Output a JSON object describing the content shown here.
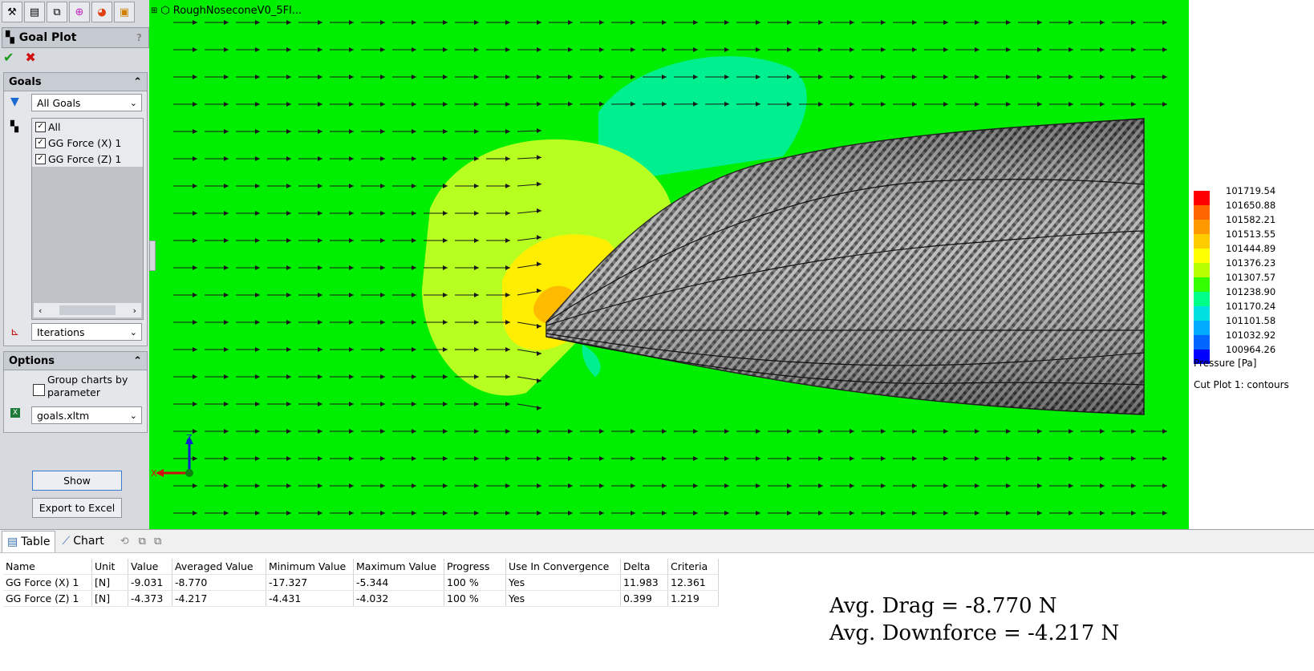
{
  "panel": {
    "title": "Goal Plot",
    "help": "?",
    "goals_header": "Goals",
    "goals_filter": "All Goals",
    "goals_items": [
      "All",
      "GG Force (X) 1",
      "GG Force (Z) 1"
    ],
    "x_axis": "Iterations",
    "options_header": "Options",
    "group_charts_label": "Group charts by parameter",
    "template": "goals.xltm",
    "show_button": "Show",
    "export_button": "Export to Excel"
  },
  "viewport": {
    "tree_label": "RoughNoseconeV0_5Fl...",
    "axis_z": "Z",
    "axis_x": "X"
  },
  "legend": {
    "values": [
      "101719.54",
      "101650.88",
      "101582.21",
      "101513.55",
      "101444.89",
      "101376.23",
      "101307.57",
      "101238.90",
      "101170.24",
      "101101.58",
      "101032.92",
      "100964.26"
    ],
    "colors": [
      "#ff0000",
      "#ff6600",
      "#ff9900",
      "#ffcc00",
      "#ffff00",
      "#b6ff00",
      "#33ff00",
      "#00ff88",
      "#00e0e0",
      "#00aaff",
      "#0066ff",
      "#0000ff"
    ],
    "title": "Pressure [Pa]",
    "subtitle": "Cut Plot 1: contours"
  },
  "bottom": {
    "tab_table": "Table",
    "tab_chart": "Chart",
    "columns": [
      "Name",
      "Unit",
      "Value",
      "Averaged Value",
      "Minimum Value",
      "Maximum Value",
      "Progress",
      "Use In Convergence",
      "Delta",
      "Criteria"
    ],
    "rows": [
      [
        "GG Force (X) 1",
        "[N]",
        "-9.031",
        "-8.770",
        "-17.327",
        "-5.344",
        "100 %",
        "Yes",
        "11.983",
        "12.361"
      ],
      [
        "GG Force (Z) 1",
        "[N]",
        "-4.373",
        "-4.217",
        "-4.431",
        "-4.032",
        "100 %",
        "Yes",
        "0.399",
        "1.219"
      ]
    ]
  },
  "summary": {
    "drag": "Avg. Drag = -8.770 N",
    "downforce": "Avg. Downforce = -4.217 N"
  }
}
